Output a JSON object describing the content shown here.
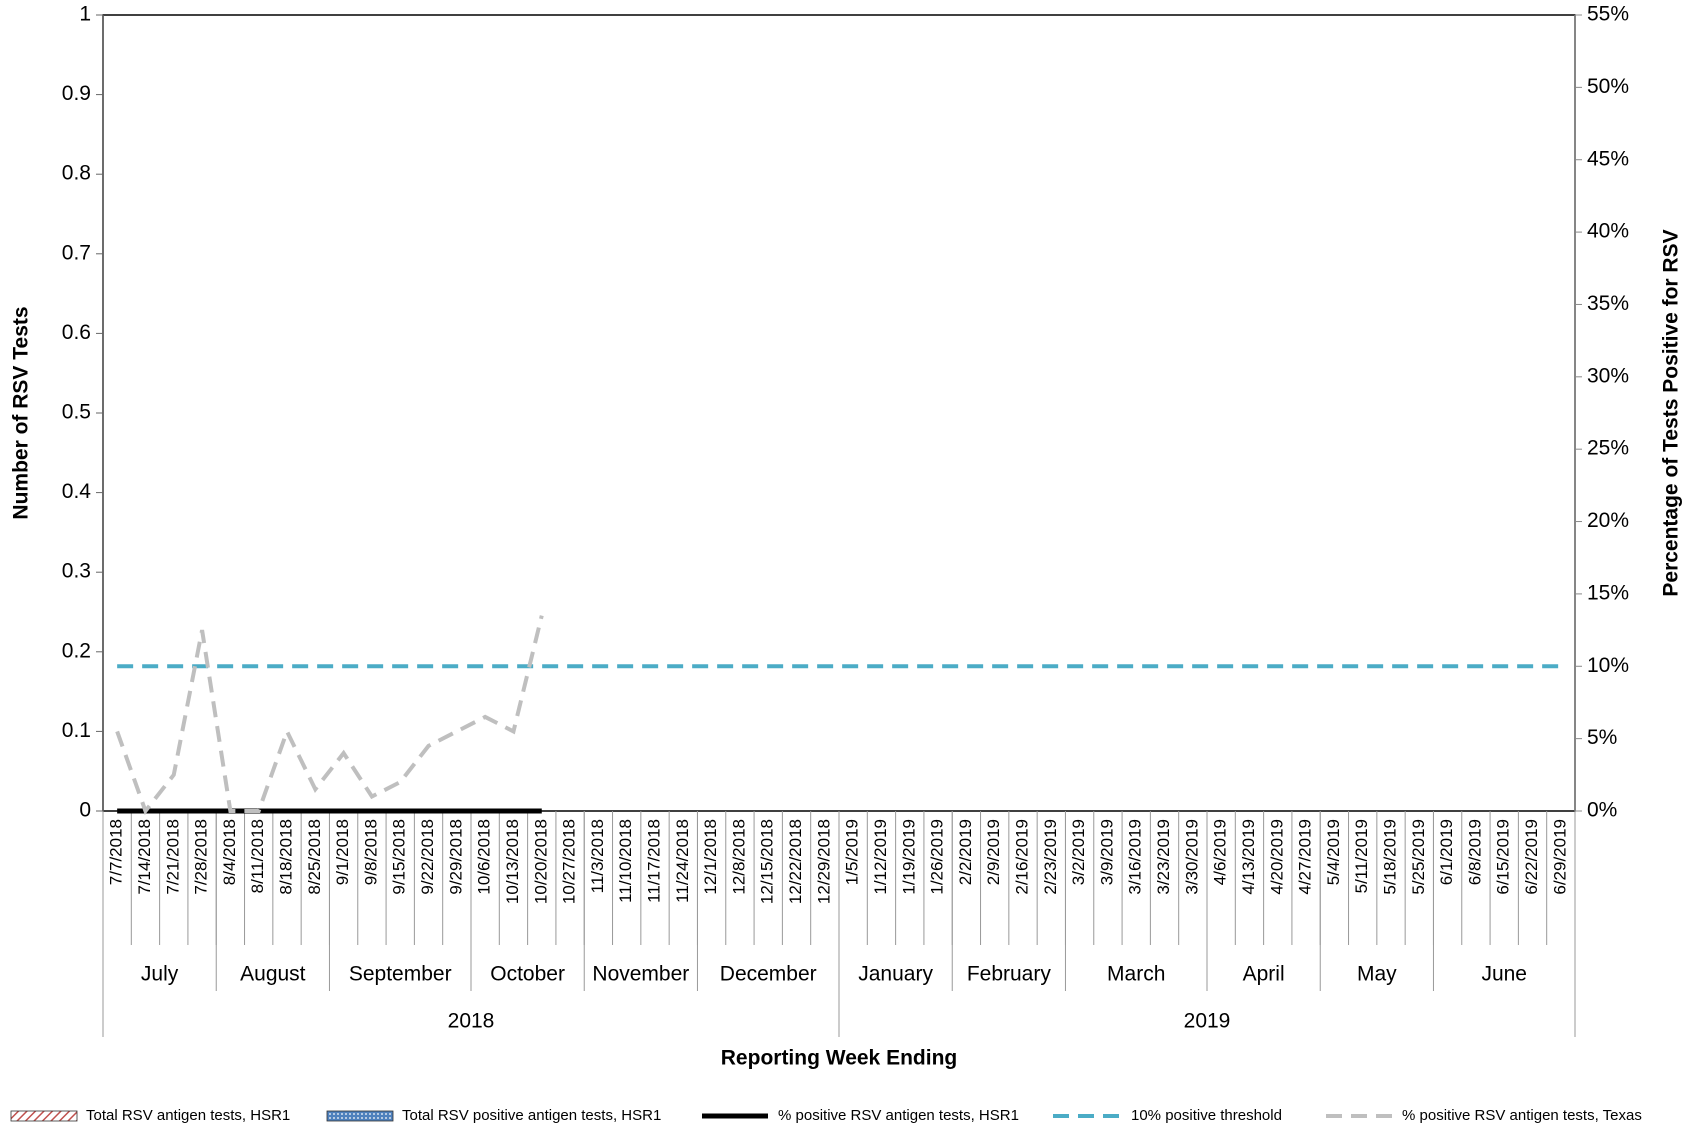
{
  "chart_data": {
    "type": "bar_line",
    "y_title": "Number of RSV Tests",
    "y2_title": "Percentage of Tests Positive for RSV",
    "x_title": "Reporting Week Ending",
    "categories": [
      "7/7/2018",
      "7/14/2018",
      "7/21/2018",
      "7/28/2018",
      "8/4/2018",
      "8/11/2018",
      "8/18/2018",
      "8/25/2018",
      "9/1/2018",
      "9/8/2018",
      "9/15/2018",
      "9/22/2018",
      "9/29/2018",
      "10/6/2018",
      "10/13/2018",
      "10/20/2018",
      "10/27/2018",
      "11/3/2018",
      "11/10/2018",
      "11/17/2018",
      "11/24/2018",
      "12/1/2018",
      "12/8/2018",
      "12/15/2018",
      "12/22/2018",
      "12/29/2018",
      "1/5/2019",
      "1/12/2019",
      "1/19/2019",
      "1/26/2019",
      "2/2/2019",
      "2/9/2019",
      "2/16/2019",
      "2/23/2019",
      "3/2/2019",
      "3/9/2019",
      "3/16/2019",
      "3/23/2019",
      "3/30/2019",
      "4/6/2019",
      "4/13/2019",
      "4/20/2019",
      "4/27/2019",
      "5/4/2019",
      "5/11/2019",
      "5/18/2019",
      "5/25/2019",
      "6/1/2019",
      "6/8/2019",
      "6/15/2019",
      "6/22/2019",
      "6/29/2019"
    ],
    "months": [
      "July",
      "August",
      "September",
      "October",
      "November",
      "December",
      "January",
      "February",
      "March",
      "April",
      "May",
      "June"
    ],
    "years": [
      "2018",
      "2019"
    ],
    "ylim": [
      0,
      1
    ],
    "yticks": [
      0,
      0.1,
      0.2,
      0.3,
      0.4,
      0.5,
      0.6,
      0.7,
      0.8,
      0.9,
      1
    ],
    "y2lim": [
      0,
      55
    ],
    "y2ticks": [
      {
        "value": 0,
        "label": "0%"
      },
      {
        "value": 5,
        "label": "5%"
      },
      {
        "value": 10,
        "label": "10%"
      },
      {
        "value": 15,
        "label": "15%"
      },
      {
        "value": 20,
        "label": "20%"
      },
      {
        "value": 25,
        "label": "25%"
      },
      {
        "value": 30,
        "label": "30%"
      },
      {
        "value": 35,
        "label": "35%"
      },
      {
        "value": 40,
        "label": "40%"
      },
      {
        "value": 45,
        "label": "45%"
      },
      {
        "value": 50,
        "label": "50%"
      },
      {
        "value": 55,
        "label": "55%"
      }
    ],
    "legend": "bottom",
    "series": [
      {
        "name": "Total RSV antigen tests, HSR1",
        "type": "bar",
        "color": "#c0504d",
        "pattern": "hatch",
        "values": [
          0,
          0,
          0,
          0,
          0,
          0,
          0,
          0,
          0,
          0,
          0,
          0,
          0,
          0,
          0,
          0,
          null,
          null,
          null,
          null,
          null,
          null,
          null,
          null,
          null,
          null,
          null,
          null,
          null,
          null,
          null,
          null,
          null,
          null,
          null,
          null,
          null,
          null,
          null,
          null,
          null,
          null,
          null,
          null,
          null,
          null,
          null,
          null,
          null,
          null,
          null,
          null
        ]
      },
      {
        "name": "Total RSV positive antigen tests, HSR1",
        "type": "bar",
        "color": "#4f81bd",
        "pattern": "dots",
        "values": [
          0,
          0,
          0,
          0,
          0,
          0,
          0,
          0,
          0,
          0,
          0,
          0,
          0,
          0,
          0,
          0,
          null,
          null,
          null,
          null,
          null,
          null,
          null,
          null,
          null,
          null,
          null,
          null,
          null,
          null,
          null,
          null,
          null,
          null,
          null,
          null,
          null,
          null,
          null,
          null,
          null,
          null,
          null,
          null,
          null,
          null,
          null,
          null,
          null,
          null,
          null,
          null
        ]
      },
      {
        "name": "% positive RSV antigen tests, HSR1",
        "type": "line",
        "axis": "y2",
        "color": "#000000",
        "style": "solid",
        "values": [
          0,
          0,
          0,
          0,
          0,
          0,
          0,
          0,
          0,
          0,
          0,
          0,
          0,
          0,
          0,
          0,
          null,
          null,
          null,
          null,
          null,
          null,
          null,
          null,
          null,
          null,
          null,
          null,
          null,
          null,
          null,
          null,
          null,
          null,
          null,
          null,
          null,
          null,
          null,
          null,
          null,
          null,
          null,
          null,
          null,
          null,
          null,
          null,
          null,
          null,
          null,
          null
        ]
      },
      {
        "name": "10% positive threshold",
        "type": "line",
        "axis": "y2",
        "color": "#4bacc6",
        "style": "dashed",
        "values": [
          10,
          10,
          10,
          10,
          10,
          10,
          10,
          10,
          10,
          10,
          10,
          10,
          10,
          10,
          10,
          10,
          10,
          10,
          10,
          10,
          10,
          10,
          10,
          10,
          10,
          10,
          10,
          10,
          10,
          10,
          10,
          10,
          10,
          10,
          10,
          10,
          10,
          10,
          10,
          10,
          10,
          10,
          10,
          10,
          10,
          10,
          10,
          10,
          10,
          10,
          10,
          10
        ]
      },
      {
        "name": "% positive RSV antigen tests, Texas",
        "type": "line",
        "axis": "y2",
        "color": "#bfbfbf",
        "style": "dashed",
        "values": [
          5.5,
          0,
          2.5,
          12.5,
          0,
          0,
          5.5,
          1.5,
          4,
          1,
          2,
          4.5,
          5.5,
          6.5,
          5.5,
          13.5,
          null,
          null,
          null,
          null,
          null,
          null,
          null,
          null,
          null,
          null,
          null,
          null,
          null,
          null,
          null,
          null,
          null,
          null,
          null,
          null,
          null,
          null,
          null,
          null,
          null,
          null,
          null,
          null,
          null,
          null,
          null,
          null,
          null,
          null,
          null,
          null
        ]
      }
    ]
  }
}
